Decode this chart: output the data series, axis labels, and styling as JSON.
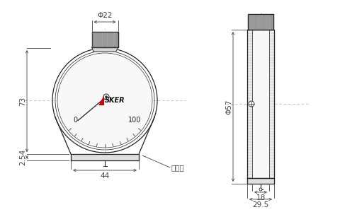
{
  "bg_color": "#ffffff",
  "line_color": "#222222",
  "dim_color": "#444444",
  "knurl_color": "#909090",
  "knurl_line": "#bbbbbb",
  "body_fill": "#f0f0f0",
  "base_fill": "#e0e0e0",
  "asker_red": "#cc0000",
  "asker_black": "#111111",
  "dim_phi22": "Φ22",
  "dim_73": "73",
  "dim_2_54": "2.54",
  "dim_44": "44",
  "dim_kaatsumen": "加圧面",
  "dim_phi57": "Φ57",
  "dim_18": "18",
  "dim_29_5": "29.5",
  "label_0": "0",
  "label_100": "100",
  "label_asker": "SKER"
}
